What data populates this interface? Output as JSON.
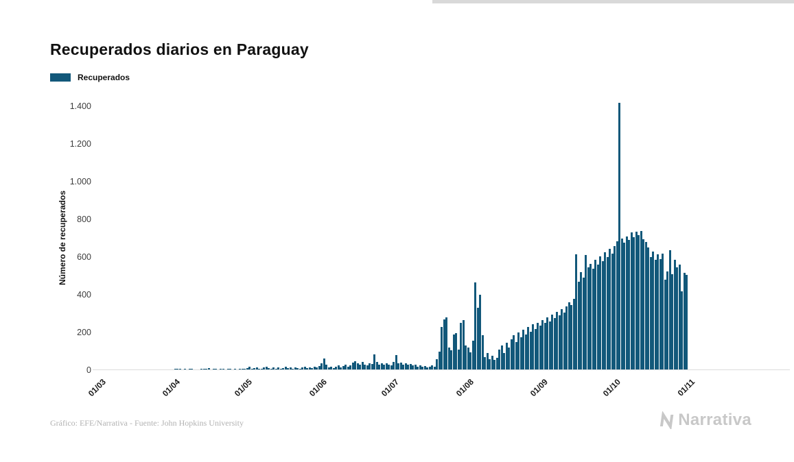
{
  "page": {
    "title": "Recuperados diarios en Paraguay",
    "footer_credit": "Gráfico: EFE/Narrativa - Fuente: John Hopkins University",
    "brand": "Narrativa"
  },
  "legend": {
    "label": "Recuperados",
    "color": "#12587a"
  },
  "chart_data": {
    "type": "bar",
    "title": "Recuperados diarios en Paraguay",
    "xlabel": "",
    "ylabel": "Número de recuperados",
    "ylim": [
      0,
      1400
    ],
    "grid": false,
    "legend_position": "top-left",
    "x_unit": "day",
    "x_range": "01/03 - 01/11",
    "y_ticks": [
      "0",
      "200",
      "400",
      "600",
      "800",
      "1.000",
      "1.200",
      "1.400"
    ],
    "x_ticks": [
      "01/03",
      "01/04",
      "01/05",
      "01/06",
      "01/07",
      "01/08",
      "01/09",
      "01/10",
      "01/11"
    ],
    "x_tick_positions": [
      0,
      31,
      61,
      92,
      122,
      153,
      184,
      214,
      245
    ],
    "n_slots": 246,
    "series": [
      {
        "name": "Recuperados",
        "color": "#12587a",
        "values": [
          0,
          0,
          0,
          0,
          0,
          0,
          0,
          0,
          0,
          0,
          0,
          2,
          0,
          0,
          3,
          0,
          0,
          2,
          0,
          0,
          0,
          3,
          0,
          0,
          2,
          0,
          0,
          0,
          2,
          0,
          3,
          8,
          6,
          9,
          5,
          7,
          4,
          6,
          8,
          3,
          5,
          0,
          6,
          9,
          7,
          12,
          5,
          8,
          6,
          4,
          7,
          9,
          5,
          8,
          6,
          3,
          7,
          5,
          9,
          6,
          8,
          12,
          18,
          8,
          10,
          14,
          6,
          9,
          16,
          20,
          11,
          8,
          13,
          9,
          15,
          7,
          12,
          18,
          10,
          14,
          9,
          16,
          11,
          8,
          13,
          19,
          12,
          15,
          10,
          17,
          13,
          22,
          35,
          62,
          28,
          15,
          20,
          12,
          18,
          25,
          14,
          22,
          30,
          18,
          25,
          40,
          48,
          35,
          28,
          42,
          30,
          25,
          38,
          32,
          85,
          45,
          30,
          38,
          28,
          35,
          30,
          25,
          45,
          80,
          35,
          40,
          30,
          38,
          28,
          32,
          25,
          30,
          20,
          25,
          18,
          22,
          15,
          20,
          25,
          18,
          60,
          100,
          230,
          270,
          280,
          120,
          105,
          190,
          195,
          110,
          250,
          265,
          130,
          120,
          95,
          155,
          465,
          330,
          400,
          185,
          70,
          90,
          60,
          75,
          55,
          65,
          110,
          130,
          90,
          145,
          120,
          165,
          185,
          150,
          200,
          175,
          215,
          190,
          230,
          205,
          245,
          220,
          250,
          235,
          265,
          250,
          280,
          260,
          295,
          275,
          310,
          290,
          325,
          305,
          340,
          360,
          345,
          380,
          615,
          470,
          520,
          490,
          610,
          545,
          565,
          540,
          585,
          560,
          605,
          580,
          625,
          600,
          645,
          620,
          660,
          685,
          1420,
          700,
          675,
          710,
          690,
          730,
          705,
          735,
          715,
          740,
          695,
          680,
          650,
          600,
          630,
          585,
          615,
          590,
          620,
          480,
          525,
          635,
          510,
          585,
          545,
          560,
          420,
          515,
          505
        ]
      }
    ]
  }
}
